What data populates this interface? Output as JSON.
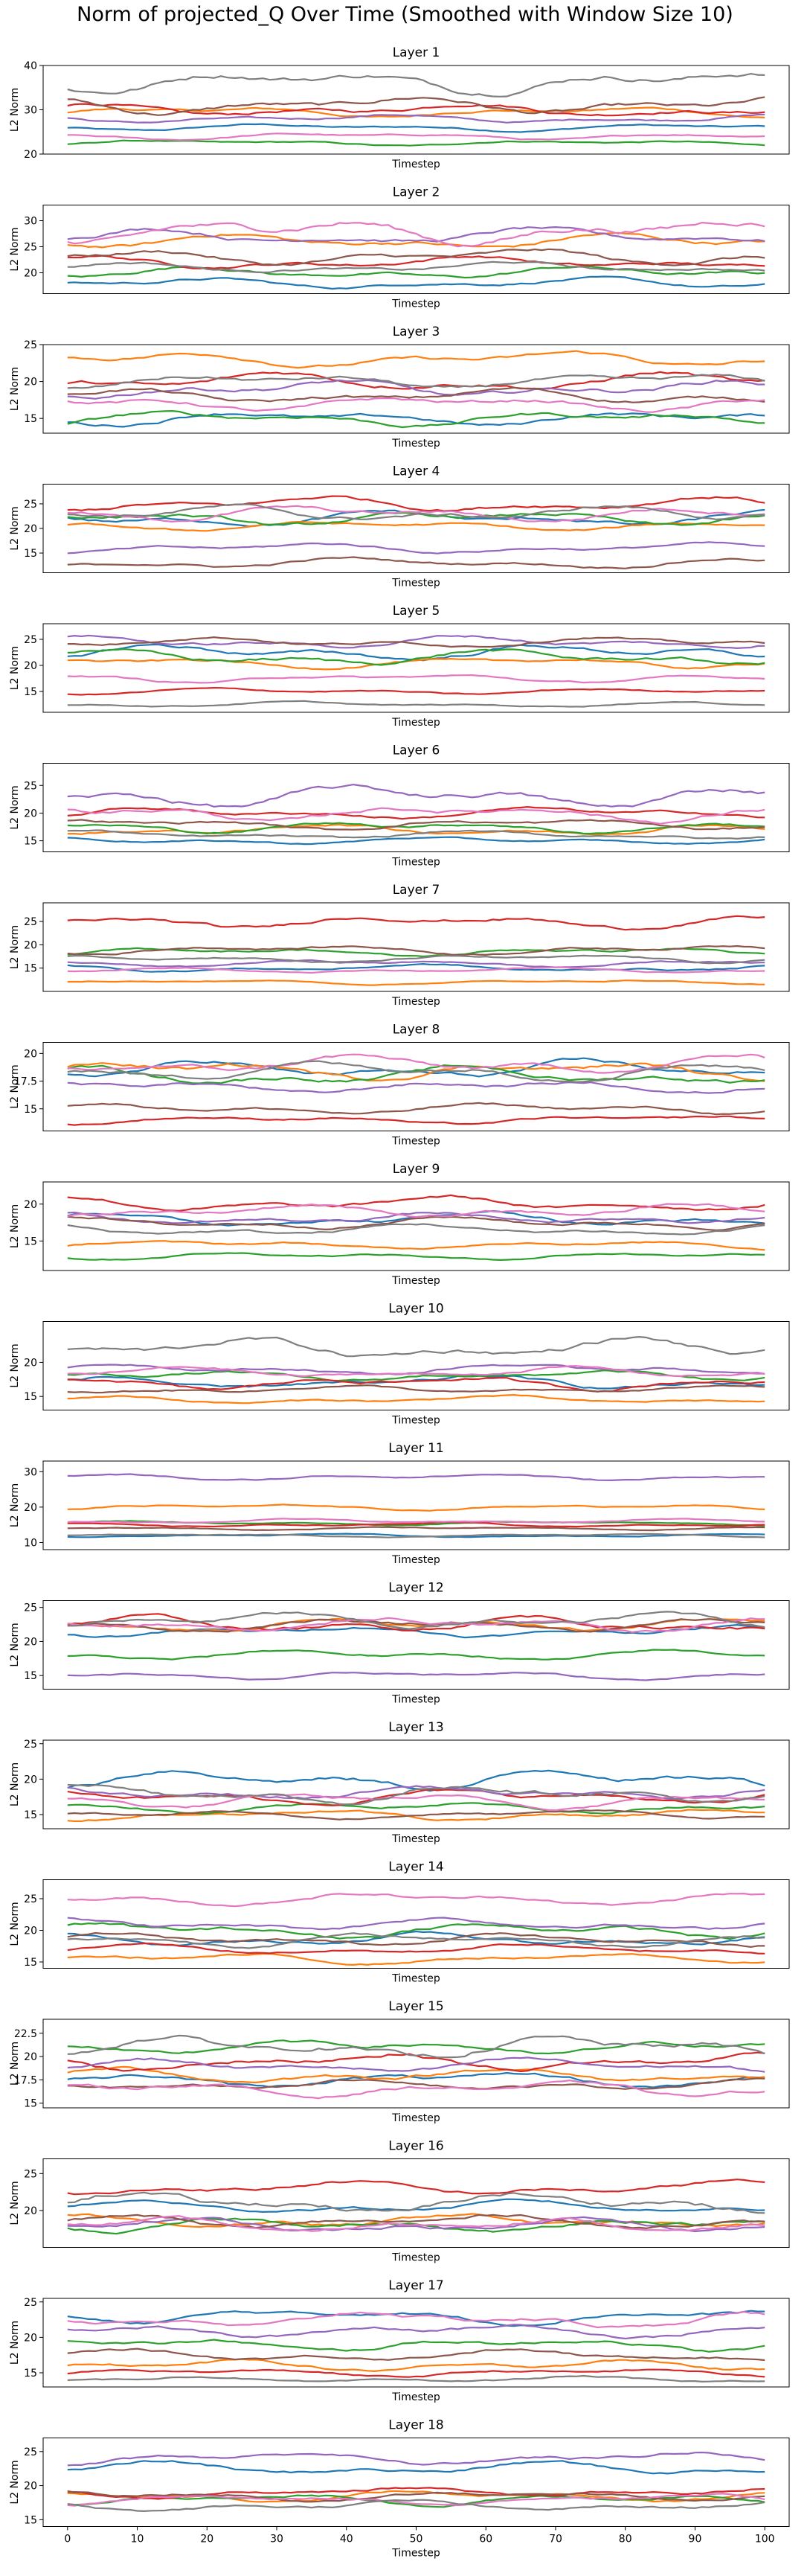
{
  "figure": {
    "title": "Norm of projected_Q Over Time (Smoothed with Window Size 10)"
  },
  "palette": [
    "#1f77b4",
    "#ff7f0e",
    "#2ca02c",
    "#d62728",
    "#9467bd",
    "#8c564b",
    "#e377c2",
    "#7f7f7f"
  ],
  "chart_data": [
    {
      "type": "line",
      "title": "Layer 1",
      "xlabel": "Timestep",
      "ylabel": "L2 Norm",
      "xlim": [
        -3.5,
        103.5
      ],
      "ylim": [
        20,
        40
      ],
      "yticks": [
        20,
        30,
        40
      ],
      "xticks": [],
      "series": [
        {
          "base": 26,
          "amp": 0.8
        },
        {
          "base": 29.5,
          "amp": 1.2
        },
        {
          "base": 22.5,
          "amp": 0.7
        },
        {
          "base": 30,
          "amp": 1.5
        },
        {
          "base": 28,
          "amp": 1
        },
        {
          "base": 31,
          "amp": 2
        },
        {
          "base": 24,
          "amp": 0.8
        },
        {
          "base": 36.5,
          "amp": 2.5
        }
      ]
    },
    {
      "type": "line",
      "title": "Layer 2",
      "xlabel": "Timestep",
      "ylabel": "L2 Norm",
      "xlim": [
        -3.5,
        103.5
      ],
      "ylim": [
        16,
        33
      ],
      "yticks": [
        20,
        25,
        30
      ],
      "xticks": [],
      "series": [
        {
          "base": 18,
          "amp": 1
        },
        {
          "base": 26,
          "amp": 1.5
        },
        {
          "base": 20,
          "amp": 1.2
        },
        {
          "base": 22,
          "amp": 1.2
        },
        {
          "base": 27,
          "amp": 1.5
        },
        {
          "base": 23,
          "amp": 1.5
        },
        {
          "base": 28,
          "amp": 2.5
        },
        {
          "base": 21,
          "amp": 1
        }
      ]
    },
    {
      "type": "line",
      "title": "Layer 3",
      "xlabel": "Timestep",
      "ylabel": "L2 Norm",
      "xlim": [
        -3.5,
        103.5
      ],
      "ylim": [
        13,
        25
      ],
      "yticks": [
        15,
        20,
        25
      ],
      "xticks": [],
      "series": [
        {
          "base": 15,
          "amp": 1
        },
        {
          "base": 23,
          "amp": 1
        },
        {
          "base": 15,
          "amp": 1
        },
        {
          "base": 20,
          "amp": 1.2
        },
        {
          "base": 19,
          "amp": 1.2
        },
        {
          "base": 18,
          "amp": 1
        },
        {
          "base": 17,
          "amp": 1
        },
        {
          "base": 20,
          "amp": 1
        }
      ]
    },
    {
      "type": "line",
      "title": "Layer 4",
      "xlabel": "Timestep",
      "ylabel": "L2 Norm",
      "xlim": [
        -3.5,
        103.5
      ],
      "ylim": [
        11,
        29
      ],
      "yticks": [
        15,
        20,
        25
      ],
      "xticks": [],
      "series": [
        {
          "base": 22,
          "amp": 1.5
        },
        {
          "base": 20.5,
          "amp": 1
        },
        {
          "base": 22,
          "amp": 1.5
        },
        {
          "base": 25,
          "amp": 1.5
        },
        {
          "base": 16,
          "amp": 1
        },
        {
          "base": 13,
          "amp": 1
        },
        {
          "base": 23,
          "amp": 1.5
        },
        {
          "base": 23,
          "amp": 1.5
        }
      ]
    },
    {
      "type": "line",
      "title": "Layer 5",
      "xlabel": "Timestep",
      "ylabel": "L2 Norm",
      "xlim": [
        -3.5,
        103.5
      ],
      "ylim": [
        11,
        28
      ],
      "yticks": [
        15,
        20,
        25
      ],
      "xticks": [],
      "series": [
        {
          "base": 22.5,
          "amp": 1.5
        },
        {
          "base": 20.5,
          "amp": 1
        },
        {
          "base": 21.5,
          "amp": 1.5
        },
        {
          "base": 15,
          "amp": 0.6
        },
        {
          "base": 24.5,
          "amp": 1.2
        },
        {
          "base": 24.5,
          "amp": 1
        },
        {
          "base": 17.5,
          "amp": 0.8
        },
        {
          "base": 12.5,
          "amp": 0.5
        }
      ]
    },
    {
      "type": "line",
      "title": "Layer 6",
      "xlabel": "Timestep",
      "ylabel": "L2 Norm",
      "xlim": [
        -3.5,
        103.5
      ],
      "ylim": [
        13,
        29
      ],
      "yticks": [
        15,
        20,
        25
      ],
      "xticks": [],
      "series": [
        {
          "base": 15,
          "amp": 0.6
        },
        {
          "base": 17,
          "amp": 1
        },
        {
          "base": 17.5,
          "amp": 1
        },
        {
          "base": 20,
          "amp": 1
        },
        {
          "base": 23,
          "amp": 2
        },
        {
          "base": 18,
          "amp": 1
        },
        {
          "base": 20,
          "amp": 1.5
        },
        {
          "base": 16,
          "amp": 0.8
        }
      ]
    },
    {
      "type": "line",
      "title": "Layer 7",
      "xlabel": "Timestep",
      "ylabel": "L2 Norm",
      "xlim": [
        -3.5,
        103.5
      ],
      "ylim": [
        10,
        29
      ],
      "yticks": [
        15,
        20,
        25
      ],
      "xticks": [],
      "series": [
        {
          "base": 15,
          "amp": 0.8
        },
        {
          "base": 12,
          "amp": 0.5
        },
        {
          "base": 18.5,
          "amp": 1
        },
        {
          "base": 25,
          "amp": 1.5
        },
        {
          "base": 16,
          "amp": 0.8
        },
        {
          "base": 19,
          "amp": 1
        },
        {
          "base": 14.5,
          "amp": 0.6
        },
        {
          "base": 17,
          "amp": 0.8
        }
      ]
    },
    {
      "type": "line",
      "title": "Layer 8",
      "xlabel": "Timestep",
      "ylabel": "L2 Norm",
      "xlim": [
        -3.5,
        103.5
      ],
      "ylim": [
        13,
        21
      ],
      "yticks": [
        15,
        17.5,
        20
      ],
      "xticks": [],
      "series": [
        {
          "base": 18.5,
          "amp": 0.8
        },
        {
          "base": 18.5,
          "amp": 0.8
        },
        {
          "base": 18,
          "amp": 0.8
        },
        {
          "base": 14,
          "amp": 0.4
        },
        {
          "base": 17,
          "amp": 0.6
        },
        {
          "base": 15,
          "amp": 0.5
        },
        {
          "base": 19,
          "amp": 0.8
        },
        {
          "base": 18.5,
          "amp": 0.8
        }
      ]
    },
    {
      "type": "line",
      "title": "Layer 9",
      "xlabel": "Timestep",
      "ylabel": "L2 Norm",
      "xlim": [
        -3.5,
        103.5
      ],
      "ylim": [
        11,
        23
      ],
      "yticks": [
        15,
        20
      ],
      "xticks": [],
      "series": [
        {
          "base": 18,
          "amp": 1
        },
        {
          "base": 14.5,
          "amp": 0.6
        },
        {
          "base": 13,
          "amp": 0.5
        },
        {
          "base": 20,
          "amp": 1
        },
        {
          "base": 18,
          "amp": 0.8
        },
        {
          "base": 17.5,
          "amp": 0.8
        },
        {
          "base": 19,
          "amp": 1
        },
        {
          "base": 16.5,
          "amp": 0.8
        }
      ]
    },
    {
      "type": "line",
      "title": "Layer 10",
      "xlabel": "Timestep",
      "ylabel": "L2 Norm",
      "xlim": [
        -3.5,
        103.5
      ],
      "ylim": [
        13,
        26
      ],
      "yticks": [
        15,
        20
      ],
      "xticks": [],
      "series": [
        {
          "base": 17,
          "amp": 1
        },
        {
          "base": 14.5,
          "amp": 0.6
        },
        {
          "base": 18,
          "amp": 0.8
        },
        {
          "base": 17,
          "amp": 1
        },
        {
          "base": 19,
          "amp": 0.8
        },
        {
          "base": 16,
          "amp": 0.6
        },
        {
          "base": 18.5,
          "amp": 0.8
        },
        {
          "base": 22,
          "amp": 1.5
        }
      ]
    },
    {
      "type": "line",
      "title": "Layer 11",
      "xlabel": "Timestep",
      "ylabel": "L2 Norm",
      "xlim": [
        -3.5,
        103.5
      ],
      "ylim": [
        8,
        33
      ],
      "yticks": [
        10,
        20,
        30
      ],
      "xticks": [],
      "series": [
        {
          "base": 12,
          "amp": 0.5
        },
        {
          "base": 20,
          "amp": 0.8
        },
        {
          "base": 15.5,
          "amp": 0.6
        },
        {
          "base": 15,
          "amp": 0.6
        },
        {
          "base": 28.5,
          "amp": 1
        },
        {
          "base": 14,
          "amp": 0.5
        },
        {
          "base": 16,
          "amp": 0.6
        },
        {
          "base": 12,
          "amp": 0.5
        }
      ]
    },
    {
      "type": "line",
      "title": "Layer 12",
      "xlabel": "Timestep",
      "ylabel": "L2 Norm",
      "xlim": [
        -3.5,
        103.5
      ],
      "ylim": [
        13,
        26
      ],
      "yticks": [
        15,
        20,
        25
      ],
      "xticks": [],
      "series": [
        {
          "base": 21.5,
          "amp": 0.8
        },
        {
          "base": 22.5,
          "amp": 1
        },
        {
          "base": 18,
          "amp": 0.8
        },
        {
          "base": 22.5,
          "amp": 1.2
        },
        {
          "base": 15,
          "amp": 0.6
        },
        {
          "base": 22.5,
          "amp": 1
        },
        {
          "base": 22.5,
          "amp": 1.2
        },
        {
          "base": 23,
          "amp": 1.2
        }
      ]
    },
    {
      "type": "line",
      "title": "Layer 13",
      "xlabel": "Timestep",
      "ylabel": "L2 Norm",
      "xlim": [
        -3.5,
        103.5
      ],
      "ylim": [
        13,
        25.5
      ],
      "yticks": [
        15,
        20,
        25
      ],
      "xticks": [],
      "series": [
        {
          "base": 20,
          "amp": 1.5
        },
        {
          "base": 15,
          "amp": 0.8
        },
        {
          "base": 16,
          "amp": 0.8
        },
        {
          "base": 17.5,
          "amp": 1
        },
        {
          "base": 18,
          "amp": 1
        },
        {
          "base": 15,
          "amp": 0.6
        },
        {
          "base": 17,
          "amp": 1
        },
        {
          "base": 18,
          "amp": 1.5
        }
      ]
    },
    {
      "type": "line",
      "title": "Layer 14",
      "xlabel": "Timestep",
      "ylabel": "L2 Norm",
      "xlim": [
        -3.5,
        103.5
      ],
      "ylim": [
        14,
        28
      ],
      "yticks": [
        15,
        20,
        25
      ],
      "xticks": [],
      "series": [
        {
          "base": 18.5,
          "amp": 1
        },
        {
          "base": 15.5,
          "amp": 0.8
        },
        {
          "base": 20,
          "amp": 1.2
        },
        {
          "base": 17,
          "amp": 0.8
        },
        {
          "base": 21,
          "amp": 1
        },
        {
          "base": 18.5,
          "amp": 1
        },
        {
          "base": 25,
          "amp": 1
        },
        {
          "base": 18.5,
          "amp": 1
        }
      ]
    },
    {
      "type": "line",
      "title": "Layer 15",
      "xlabel": "Timestep",
      "ylabel": "L2 Norm",
      "xlim": [
        -3.5,
        103.5
      ],
      "ylim": [
        14.5,
        24
      ],
      "yticks": [
        15,
        17.5,
        20,
        22.5
      ],
      "xticks": [],
      "series": [
        {
          "base": 17.5,
          "amp": 0.8
        },
        {
          "base": 18,
          "amp": 0.8
        },
        {
          "base": 21,
          "amp": 0.8
        },
        {
          "base": 19.5,
          "amp": 1
        },
        {
          "base": 19,
          "amp": 0.8
        },
        {
          "base": 17,
          "amp": 0.6
        },
        {
          "base": 16.5,
          "amp": 0.8
        },
        {
          "base": 21,
          "amp": 1.2
        }
      ]
    },
    {
      "type": "line",
      "title": "Layer 16",
      "xlabel": "Timestep",
      "ylabel": "L2 Norm",
      "xlim": [
        -3.5,
        103.5
      ],
      "ylim": [
        15,
        27
      ],
      "yticks": [
        20,
        25
      ],
      "xticks": [],
      "series": [
        {
          "base": 20.5,
          "amp": 0.8
        },
        {
          "base": 18.5,
          "amp": 1
        },
        {
          "base": 18,
          "amp": 1
        },
        {
          "base": 23,
          "amp": 1
        },
        {
          "base": 18,
          "amp": 1
        },
        {
          "base": 18.5,
          "amp": 1
        },
        {
          "base": 18,
          "amp": 1
        },
        {
          "base": 21,
          "amp": 1.5
        }
      ]
    },
    {
      "type": "line",
      "title": "Layer 17",
      "xlabel": "Timestep",
      "ylabel": "L2 Norm",
      "xlim": [
        -3.5,
        103.5
      ],
      "ylim": [
        13,
        25.5
      ],
      "yticks": [
        15,
        20,
        25
      ],
      "xticks": [],
      "series": [
        {
          "base": 23,
          "amp": 1
        },
        {
          "base": 16,
          "amp": 0.8
        },
        {
          "base": 19,
          "amp": 1
        },
        {
          "base": 15,
          "amp": 0.6
        },
        {
          "base": 21,
          "amp": 1
        },
        {
          "base": 17.5,
          "amp": 0.8
        },
        {
          "base": 22.5,
          "amp": 1.2
        },
        {
          "base": 14,
          "amp": 0.5
        }
      ]
    },
    {
      "type": "line",
      "title": "Layer 18",
      "xlabel": "Timestep",
      "ylabel": "L2 Norm",
      "xlim": [
        -3.5,
        103.5
      ],
      "ylim": [
        14,
        27
      ],
      "yticks": [
        15,
        20,
        25
      ],
      "xticks": [
        0,
        10,
        20,
        30,
        40,
        50,
        60,
        70,
        80,
        90,
        100
      ],
      "series": [
        {
          "base": 22.5,
          "amp": 1
        },
        {
          "base": 18.5,
          "amp": 0.8
        },
        {
          "base": 18,
          "amp": 0.8
        },
        {
          "base": 19,
          "amp": 0.8
        },
        {
          "base": 24,
          "amp": 1
        },
        {
          "base": 18.5,
          "amp": 0.8
        },
        {
          "base": 18,
          "amp": 0.8
        },
        {
          "base": 17,
          "amp": 0.8
        }
      ]
    }
  ]
}
